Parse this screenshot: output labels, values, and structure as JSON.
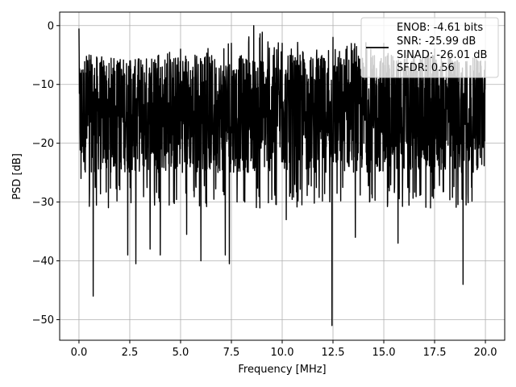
{
  "chart_data": {
    "type": "line",
    "title": "",
    "xlabel": "Frequency [MHz]",
    "ylabel": "PSD [dB]",
    "xlim": [
      -0.95,
      20.95
    ],
    "ylim": [
      -53.5,
      2.3
    ],
    "xticks": [
      0.0,
      2.5,
      5.0,
      7.5,
      10.0,
      12.5,
      15.0,
      17.5,
      20.0
    ],
    "xtick_labels": [
      "0.0",
      "2.5",
      "5.0",
      "7.5",
      "10.0",
      "12.5",
      "15.0",
      "17.5",
      "20.0"
    ],
    "yticks": [
      0,
      -10,
      -20,
      -30,
      -40,
      -50
    ],
    "ytick_labels": [
      "0",
      "−10",
      "−20",
      "−30",
      "−40",
      "−50"
    ],
    "grid": true,
    "legend": {
      "placement": "top-right",
      "entries": [
        "ENOB: -4.61 bits",
        "SNR: -25.99 dB",
        "SINAD: -26.01 dB",
        "SFDR: 0.56"
      ]
    },
    "series": [
      {
        "color": "#000000",
        "x_range": [
          0.0,
          20.0
        ],
        "typical_range": [
          -25,
          -5
        ],
        "envelope_max": [
          [
            0.0,
            -0.5
          ],
          [
            0.5,
            -5
          ],
          [
            2.5,
            -6
          ],
          [
            5.0,
            -4
          ],
          [
            7.5,
            -3
          ],
          [
            8.6,
            0.0
          ],
          [
            10.0,
            -3
          ],
          [
            12.5,
            -2
          ],
          [
            15.0,
            -3
          ],
          [
            17.5,
            -4
          ],
          [
            20.0,
            -6
          ]
        ],
        "notable_minima": [
          [
            0.1,
            -26
          ],
          [
            0.7,
            -46
          ],
          [
            2.4,
            -39
          ],
          [
            2.8,
            -40.5
          ],
          [
            3.5,
            -38
          ],
          [
            4.0,
            -39
          ],
          [
            5.3,
            -35.5
          ],
          [
            6.0,
            -40
          ],
          [
            7.2,
            -39
          ],
          [
            7.4,
            -40.5
          ],
          [
            8.9,
            -31
          ],
          [
            10.2,
            -33
          ],
          [
            12.45,
            -51
          ],
          [
            13.6,
            -36
          ],
          [
            15.7,
            -37
          ],
          [
            17.3,
            -31
          ],
          [
            18.9,
            -44
          ],
          [
            20.0,
            -27
          ]
        ]
      }
    ]
  }
}
